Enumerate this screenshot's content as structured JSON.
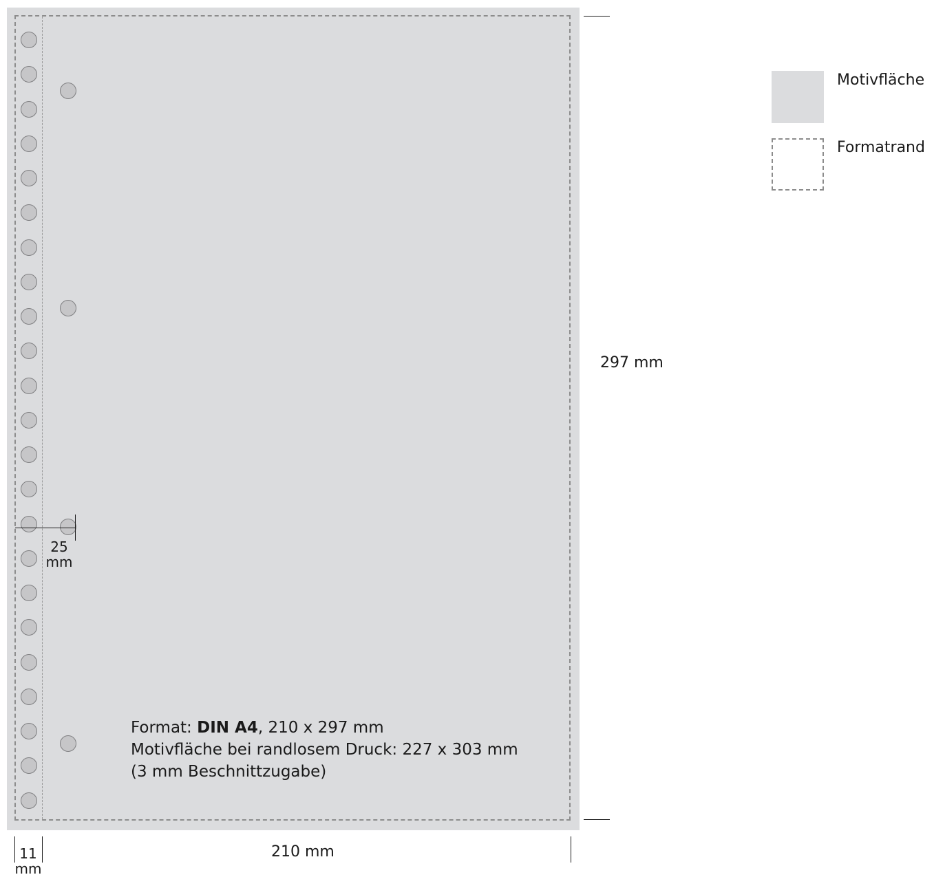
{
  "info": {
    "format_prefix": "Format: ",
    "format_name": "DIN A4",
    "format_size": ", 210 x 297 mm",
    "line2": "Motivfläche bei randlosem Druck: 227 x 303 mm",
    "line3": "(3 mm Beschnittzugabe)"
  },
  "dimensions": {
    "height": "297 mm",
    "width": "210 mm",
    "strip_value": "11",
    "strip_unit": "mm",
    "hole_offset_value": "25",
    "hole_offset_unit": "mm"
  },
  "legend": {
    "fill_label": "Motivfläche",
    "edge_label": "Formatrand"
  },
  "colors": {
    "motif_area": "#dbdcde",
    "format_edge": "#8c8c8c",
    "hole_fill": "#c6c6c8"
  }
}
